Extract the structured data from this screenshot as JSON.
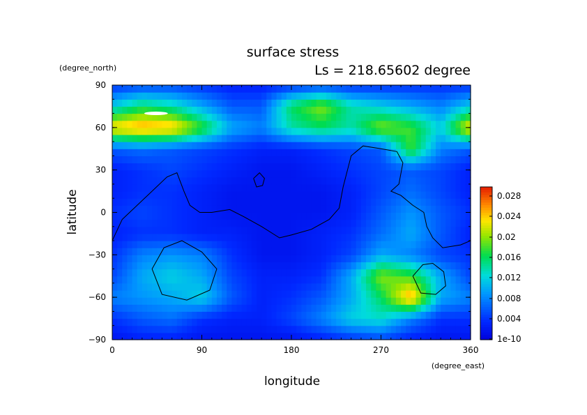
{
  "chart_data": {
    "type": "heatmap",
    "title": "surface stress",
    "subtitle": "Ls = 218.65602 degree",
    "xlabel": "longitude",
    "ylabel": "latitude",
    "x_unit": "(degree_east)",
    "y_unit": "(degree_north)",
    "xlim": [
      0,
      360
    ],
    "ylim": [
      -90,
      90
    ],
    "x_ticks": [
      "0",
      "90",
      "180",
      "270",
      "360"
    ],
    "y_ticks": [
      "90",
      "60",
      "30",
      "0",
      "−30",
      "−60",
      "−90"
    ],
    "colorbar": {
      "ticks": [
        "0.028",
        "0.024",
        "0.02",
        "0.016",
        "0.012",
        "0.008",
        "0.004",
        "1e-10"
      ],
      "min": 0,
      "max": 0.03
    },
    "x": [
      0,
      30,
      60,
      90,
      120,
      150,
      180,
      210,
      240,
      270,
      300,
      330,
      360
    ],
    "y": [
      -90,
      -75,
      -60,
      -45,
      -30,
      -15,
      0,
      15,
      30,
      45,
      60,
      75,
      90
    ],
    "z": [
      [
        0.002,
        0.003,
        0.003,
        0.002,
        0.002,
        0.002,
        0.002,
        0.003,
        0.004,
        0.005,
        0.003,
        0.002,
        0.002
      ],
      [
        0.004,
        0.006,
        0.007,
        0.004,
        0.003,
        0.003,
        0.005,
        0.008,
        0.012,
        0.013,
        0.008,
        0.004,
        0.004
      ],
      [
        0.008,
        0.009,
        0.01,
        0.012,
        0.006,
        0.003,
        0.004,
        0.006,
        0.01,
        0.016,
        0.026,
        0.01,
        0.008
      ],
      [
        0.005,
        0.01,
        0.012,
        0.01,
        0.005,
        0.003,
        0.003,
        0.004,
        0.01,
        0.02,
        0.018,
        0.01,
        0.005
      ],
      [
        0.004,
        0.008,
        0.009,
        0.008,
        0.004,
        0.002,
        0.002,
        0.003,
        0.005,
        0.01,
        0.008,
        0.005,
        0.004
      ],
      [
        0.003,
        0.004,
        0.004,
        0.003,
        0.003,
        0.002,
        0.002,
        0.003,
        0.004,
        0.007,
        0.01,
        0.006,
        0.003
      ],
      [
        0.004,
        0.005,
        0.004,
        0.003,
        0.002,
        0.002,
        0.002,
        0.002,
        0.003,
        0.006,
        0.009,
        0.006,
        0.004
      ],
      [
        0.003,
        0.004,
        0.004,
        0.003,
        0.002,
        0.002,
        0.002,
        0.002,
        0.003,
        0.005,
        0.007,
        0.005,
        0.003
      ],
      [
        0.003,
        0.004,
        0.005,
        0.004,
        0.003,
        0.002,
        0.002,
        0.003,
        0.004,
        0.005,
        0.006,
        0.005,
        0.003
      ],
      [
        0.006,
        0.007,
        0.006,
        0.005,
        0.004,
        0.003,
        0.003,
        0.004,
        0.005,
        0.006,
        0.018,
        0.008,
        0.006
      ],
      [
        0.024,
        0.026,
        0.025,
        0.018,
        0.01,
        0.008,
        0.014,
        0.016,
        0.014,
        0.02,
        0.018,
        0.012,
        0.024
      ],
      [
        0.012,
        0.016,
        0.014,
        0.01,
        0.006,
        0.006,
        0.016,
        0.02,
        0.014,
        0.012,
        0.01,
        0.008,
        0.012
      ],
      [
        0.004,
        0.005,
        0.005,
        0.004,
        0.003,
        0.003,
        0.004,
        0.005,
        0.004,
        0.004,
        0.004,
        0.004,
        0.004
      ]
    ],
    "max_marker": {
      "lon": 44,
      "lat": 70,
      "color": "#ffffff"
    },
    "contours": [
      [
        [
          0,
          -20
        ],
        [
          10,
          -5
        ],
        [
          25,
          5
        ],
        [
          40,
          15
        ],
        [
          55,
          25
        ],
        [
          65,
          28
        ],
        [
          72,
          15
        ],
        [
          78,
          5
        ],
        [
          88,
          0
        ],
        [
          100,
          0
        ],
        [
          118,
          2
        ],
        [
          132,
          -3
        ],
        [
          150,
          -10
        ],
        [
          168,
          -18
        ],
        [
          180,
          -16
        ],
        [
          200,
          -12
        ],
        [
          218,
          -5
        ],
        [
          228,
          3
        ],
        [
          232,
          18
        ],
        [
          240,
          40
        ],
        [
          252,
          47
        ],
        [
          270,
          45
        ],
        [
          286,
          43
        ],
        [
          292,
          35
        ],
        [
          288,
          20
        ],
        [
          280,
          15
        ],
        [
          290,
          12
        ],
        [
          302,
          5
        ],
        [
          313,
          0
        ],
        [
          316,
          -10
        ],
        [
          322,
          -18
        ],
        [
          332,
          -25
        ],
        [
          350,
          -23
        ],
        [
          360,
          -20
        ]
      ],
      [
        [
          142,
          24
        ],
        [
          148,
          28
        ],
        [
          153,
          24
        ],
        [
          151,
          19
        ],
        [
          145,
          18
        ],
        [
          142,
          24
        ]
      ],
      [
        [
          40,
          -40
        ],
        [
          52,
          -25
        ],
        [
          70,
          -20
        ],
        [
          90,
          -28
        ],
        [
          105,
          -40
        ],
        [
          98,
          -55
        ],
        [
          75,
          -62
        ],
        [
          50,
          -58
        ],
        [
          40,
          -40
        ]
      ],
      [
        [
          302,
          -45
        ],
        [
          312,
          -37
        ],
        [
          322,
          -36
        ],
        [
          333,
          -42
        ],
        [
          335,
          -52
        ],
        [
          325,
          -58
        ],
        [
          310,
          -57
        ],
        [
          302,
          -45
        ]
      ]
    ]
  }
}
